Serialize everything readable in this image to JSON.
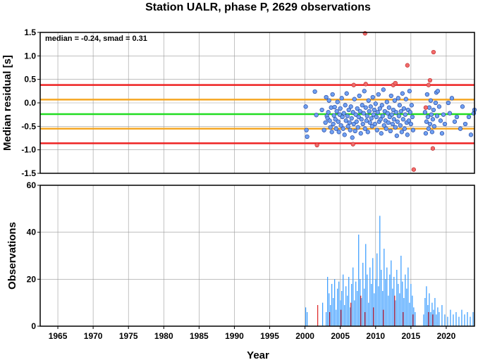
{
  "chart_data": [
    {
      "type": "scatter",
      "title": "Station UALR, phase P, 2629 observations",
      "ylabel": "Median residual [s]",
      "annotation": "median = -0.24, smad = 0.31",
      "xlim": [
        1962.5,
        2024.0
      ],
      "ylim": [
        -1.5,
        1.5
      ],
      "grid": true,
      "yticks": [
        "1.5",
        "1.0",
        "0.5",
        "0.0",
        "-0.5",
        "-1.0",
        "-1.5"
      ],
      "ytick_values": [
        1.5,
        1.0,
        0.5,
        0.0,
        -0.5,
        -1.0,
        -1.5
      ],
      "reference_lines": [
        {
          "y": 0.38,
          "color": "#ee2222"
        },
        {
          "y": 0.07,
          "color": "#f5a623"
        },
        {
          "y": -0.24,
          "color": "#22dd22"
        },
        {
          "y": -0.55,
          "color": "#f5a623"
        },
        {
          "y": -0.86,
          "color": "#ee2222"
        }
      ],
      "points_normal": [
        [
          2000.1,
          -0.08
        ],
        [
          2000.2,
          -0.58
        ],
        [
          2000.3,
          -0.72
        ],
        [
          2001.4,
          0.24
        ],
        [
          2001.6,
          -0.26
        ],
        [
          2002.4,
          -0.15
        ],
        [
          2002.7,
          -0.58
        ],
        [
          2002.9,
          -0.42
        ],
        [
          2003.0,
          0.12
        ],
        [
          2003.1,
          -0.28
        ],
        [
          2003.2,
          -0.33
        ],
        [
          2003.3,
          -0.2
        ],
        [
          2003.4,
          0.05
        ],
        [
          2003.5,
          -0.38
        ],
        [
          2003.6,
          -0.52
        ],
        [
          2003.7,
          -0.1
        ],
        [
          2003.8,
          -0.62
        ],
        [
          2003.9,
          0.18
        ],
        [
          2004.0,
          -0.45
        ],
        [
          2004.1,
          -0.27
        ],
        [
          2004.2,
          -0.09
        ],
        [
          2004.3,
          -0.35
        ],
        [
          2004.4,
          -0.55
        ],
        [
          2004.5,
          -0.18
        ],
        [
          2004.6,
          0.02
        ],
        [
          2004.7,
          -0.4
        ],
        [
          2004.8,
          -0.62
        ],
        [
          2004.9,
          -0.25
        ],
        [
          2005.0,
          -0.12
        ],
        [
          2005.1,
          -0.48
        ],
        [
          2005.2,
          0.1
        ],
        [
          2005.3,
          -0.3
        ],
        [
          2005.4,
          -0.55
        ],
        [
          2005.5,
          -0.22
        ],
        [
          2005.6,
          -0.68
        ],
        [
          2005.7,
          -0.05
        ],
        [
          2005.8,
          -0.38
        ],
        [
          2005.9,
          0.2
        ],
        [
          2006.0,
          -0.28
        ],
        [
          2006.1,
          -0.5
        ],
        [
          2006.2,
          -0.15
        ],
        [
          2006.3,
          -0.42
        ],
        [
          2006.4,
          -0.58
        ],
        [
          2006.5,
          -0.08
        ],
        [
          2006.6,
          -0.33
        ],
        [
          2006.7,
          -0.74
        ],
        [
          2006.8,
          -0.2
        ],
        [
          2006.9,
          -0.45
        ],
        [
          2007.0,
          0.08
        ],
        [
          2007.1,
          -0.6
        ],
        [
          2007.2,
          -0.25
        ],
        [
          2007.3,
          -0.4
        ],
        [
          2007.4,
          -0.12
        ],
        [
          2007.5,
          -0.52
        ],
        [
          2007.6,
          -0.3
        ],
        [
          2007.7,
          0.15
        ],
        [
          2007.8,
          -0.18
        ],
        [
          2007.9,
          -0.65
        ],
        [
          2008.0,
          -0.35
        ],
        [
          2008.1,
          -0.05
        ],
        [
          2008.2,
          -0.45
        ],
        [
          2008.3,
          -0.22
        ],
        [
          2008.4,
          0.25
        ],
        [
          2008.5,
          -0.55
        ],
        [
          2008.6,
          -0.1
        ],
        [
          2008.7,
          -0.38
        ],
        [
          2008.8,
          -0.28
        ],
        [
          2008.9,
          -0.62
        ],
        [
          2009.0,
          0.05
        ],
        [
          2009.1,
          -0.18
        ],
        [
          2009.2,
          -0.42
        ],
        [
          2009.3,
          -0.08
        ],
        [
          2009.4,
          -0.33
        ],
        [
          2009.5,
          -0.5
        ],
        [
          2009.6,
          0.12
        ],
        [
          2009.7,
          -0.25
        ],
        [
          2009.8,
          -0.15
        ],
        [
          2009.9,
          -0.45
        ],
        [
          2010.0,
          -0.02
        ],
        [
          2010.1,
          -0.3
        ],
        [
          2010.2,
          -0.58
        ],
        [
          2010.3,
          -0.2
        ],
        [
          2010.4,
          0.18
        ],
        [
          2010.5,
          -0.4
        ],
        [
          2010.6,
          -0.12
        ],
        [
          2010.7,
          -0.35
        ],
        [
          2010.8,
          -0.65
        ],
        [
          2010.9,
          -0.05
        ],
        [
          2011.0,
          -0.28
        ],
        [
          2011.1,
          0.28
        ],
        [
          2011.2,
          -0.48
        ],
        [
          2011.3,
          -0.18
        ],
        [
          2011.4,
          -0.38
        ],
        [
          2011.5,
          -0.55
        ],
        [
          2011.6,
          0.02
        ],
        [
          2011.7,
          -0.22
        ],
        [
          2011.8,
          -0.42
        ],
        [
          2011.9,
          -0.1
        ],
        [
          2012.0,
          -0.3
        ],
        [
          2012.1,
          -0.6
        ],
        [
          2012.2,
          0.15
        ],
        [
          2012.3,
          -0.25
        ],
        [
          2012.4,
          -0.45
        ],
        [
          2012.5,
          -0.15
        ],
        [
          2012.6,
          -0.35
        ],
        [
          2012.7,
          0.05
        ],
        [
          2012.8,
          -0.52
        ],
        [
          2012.9,
          -0.2
        ],
        [
          2013.0,
          -0.7
        ],
        [
          2013.1,
          -0.4
        ],
        [
          2013.2,
          0.1
        ],
        [
          2013.3,
          -0.28
        ],
        [
          2013.4,
          -0.05
        ],
        [
          2013.5,
          -0.48
        ],
        [
          2013.6,
          -0.18
        ],
        [
          2013.7,
          -0.62
        ],
        [
          2013.8,
          0.2
        ],
        [
          2013.9,
          -0.35
        ],
        [
          2014.0,
          -0.12
        ],
        [
          2014.1,
          -0.55
        ],
        [
          2014.2,
          -0.25
        ],
        [
          2014.3,
          0.08
        ],
        [
          2014.4,
          -0.42
        ],
        [
          2014.5,
          -0.68
        ],
        [
          2014.6,
          -0.15
        ],
        [
          2014.7,
          -0.38
        ],
        [
          2014.8,
          0.25
        ],
        [
          2014.9,
          -0.2
        ],
        [
          2015.0,
          -0.45
        ],
        [
          2015.1,
          -0.05
        ],
        [
          2015.2,
          -0.3
        ],
        [
          2015.3,
          -0.58
        ],
        [
          2017.0,
          -0.2
        ],
        [
          2017.1,
          -0.65
        ],
        [
          2017.2,
          -0.4
        ],
        [
          2017.3,
          0.18
        ],
        [
          2017.4,
          -0.3
        ],
        [
          2017.5,
          -0.55
        ],
        [
          2017.6,
          -0.1
        ],
        [
          2017.7,
          -0.45
        ],
        [
          2017.8,
          0.05
        ],
        [
          2017.9,
          -0.25
        ],
        [
          2018.0,
          -0.62
        ],
        [
          2018.1,
          -0.35
        ],
        [
          2018.2,
          -0.15
        ],
        [
          2018.3,
          -0.5
        ],
        [
          2018.5,
          0.0
        ],
        [
          2018.6,
          0.22
        ],
        [
          2018.7,
          -0.28
        ],
        [
          2018.8,
          0.25
        ],
        [
          2019.0,
          -0.08
        ],
        [
          2019.2,
          -0.38
        ],
        [
          2019.4,
          -0.65
        ],
        [
          2019.6,
          -0.25
        ],
        [
          2019.8,
          -0.45
        ],
        [
          2020.3,
          0.0
        ],
        [
          2020.5,
          -0.22
        ],
        [
          2020.8,
          0.1
        ],
        [
          2021.2,
          -0.4
        ],
        [
          2021.5,
          -0.3
        ],
        [
          2022.0,
          -0.55
        ],
        [
          2022.3,
          -0.08
        ],
        [
          2022.7,
          -0.45
        ],
        [
          2023.2,
          -0.3
        ],
        [
          2023.5,
          -0.68
        ],
        [
          2023.9,
          -0.22
        ],
        [
          2024.0,
          -0.15
        ]
      ],
      "points_outlier": [
        [
          2001.7,
          -0.9
        ],
        [
          2006.8,
          -0.88
        ],
        [
          2006.9,
          0.38
        ],
        [
          2008.5,
          1.48
        ],
        [
          2008.6,
          0.4
        ],
        [
          2012.5,
          0.38
        ],
        [
          2012.8,
          0.42
        ],
        [
          2014.5,
          0.8
        ],
        [
          2015.4,
          -1.42
        ],
        [
          2017.1,
          -0.1
        ],
        [
          2017.5,
          0.38
        ],
        [
          2017.7,
          0.48
        ],
        [
          2018.1,
          -0.97
        ],
        [
          2018.2,
          1.08
        ]
      ],
      "colors": {
        "normal_fill": "#6fa0f2",
        "normal_stroke": "#2a4aa0",
        "outlier_fill": "#f26b6b",
        "outlier_stroke": "#c03030"
      }
    },
    {
      "type": "bar",
      "xlabel": "Year",
      "ylabel": "Observations",
      "xlim": [
        1962.5,
        2024.0
      ],
      "ylim": [
        0,
        60
      ],
      "grid": true,
      "xticks": [
        "1965",
        "1970",
        "1975",
        "1980",
        "1985",
        "1990",
        "1995",
        "2000",
        "2005",
        "2010",
        "2015",
        "2020"
      ],
      "xtick_values": [
        1965,
        1970,
        1975,
        1980,
        1985,
        1990,
        1995,
        2000,
        2005,
        2010,
        2015,
        2020
      ],
      "yticks": [
        "60",
        "40",
        "20",
        "0"
      ],
      "ytick_values": [
        60,
        40,
        20,
        0
      ],
      "bars_blue": [
        [
          2000.1,
          8
        ],
        [
          2000.3,
          6
        ],
        [
          2002.5,
          10
        ],
        [
          2003.0,
          6
        ],
        [
          2003.2,
          21
        ],
        [
          2003.4,
          14
        ],
        [
          2003.6,
          9
        ],
        [
          2003.8,
          18
        ],
        [
          2004.0,
          12
        ],
        [
          2004.2,
          20
        ],
        [
          2004.4,
          7
        ],
        [
          2004.6,
          16
        ],
        [
          2004.8,
          19
        ],
        [
          2005.0,
          11
        ],
        [
          2005.2,
          15
        ],
        [
          2005.4,
          22
        ],
        [
          2005.6,
          9
        ],
        [
          2005.8,
          17
        ],
        [
          2006.0,
          13
        ],
        [
          2006.2,
          21
        ],
        [
          2006.4,
          8
        ],
        [
          2006.6,
          18
        ],
        [
          2006.8,
          25
        ],
        [
          2007.0,
          11
        ],
        [
          2007.2,
          19
        ],
        [
          2007.4,
          15
        ],
        [
          2007.6,
          39
        ],
        [
          2007.8,
          20
        ],
        [
          2008.0,
          12
        ],
        [
          2008.2,
          27
        ],
        [
          2008.4,
          16
        ],
        [
          2008.6,
          35
        ],
        [
          2008.8,
          22
        ],
        [
          2009.0,
          10
        ],
        [
          2009.2,
          25
        ],
        [
          2009.4,
          18
        ],
        [
          2009.6,
          29
        ],
        [
          2009.8,
          14
        ],
        [
          2010.0,
          20
        ],
        [
          2010.2,
          31
        ],
        [
          2010.4,
          17
        ],
        [
          2010.6,
          47
        ],
        [
          2010.8,
          24
        ],
        [
          2011.0,
          15
        ],
        [
          2011.2,
          33
        ],
        [
          2011.4,
          20
        ],
        [
          2011.6,
          25
        ],
        [
          2011.8,
          13
        ],
        [
          2012.0,
          22
        ],
        [
          2012.2,
          28
        ],
        [
          2012.4,
          16
        ],
        [
          2012.6,
          21
        ],
        [
          2012.8,
          11
        ],
        [
          2013.0,
          24
        ],
        [
          2013.2,
          18
        ],
        [
          2013.4,
          14
        ],
        [
          2013.6,
          30
        ],
        [
          2013.8,
          19
        ],
        [
          2014.0,
          12
        ],
        [
          2014.2,
          22
        ],
        [
          2014.4,
          16
        ],
        [
          2014.6,
          25
        ],
        [
          2014.8,
          10
        ],
        [
          2015.0,
          18
        ],
        [
          2015.2,
          13
        ],
        [
          2015.4,
          8
        ],
        [
          2015.6,
          6
        ],
        [
          2016.8,
          5
        ],
        [
          2017.0,
          12
        ],
        [
          2017.2,
          17
        ],
        [
          2017.4,
          9
        ],
        [
          2017.6,
          14
        ],
        [
          2017.8,
          6
        ],
        [
          2018.0,
          10
        ],
        [
          2018.2,
          7
        ],
        [
          2018.4,
          12
        ],
        [
          2018.6,
          5
        ],
        [
          2018.8,
          8
        ],
        [
          2019.0,
          6
        ],
        [
          2019.4,
          9
        ],
        [
          2019.8,
          5
        ],
        [
          2020.2,
          4
        ],
        [
          2020.6,
          7
        ],
        [
          2021.0,
          5
        ],
        [
          2021.4,
          6
        ],
        [
          2021.8,
          4
        ],
        [
          2022.2,
          7
        ],
        [
          2022.6,
          5
        ],
        [
          2023.0,
          6
        ],
        [
          2023.4,
          4
        ],
        [
          2023.8,
          6
        ]
      ],
      "bars_red": [
        [
          2001.8,
          9
        ],
        [
          2003.5,
          6
        ],
        [
          2005.1,
          7
        ],
        [
          2006.5,
          10
        ],
        [
          2007.9,
          13
        ],
        [
          2008.5,
          6
        ],
        [
          2009.7,
          8
        ],
        [
          2011.1,
          7
        ],
        [
          2012.7,
          13
        ],
        [
          2013.9,
          6
        ],
        [
          2015.3,
          5
        ],
        [
          2017.5,
          6
        ],
        [
          2018.1,
          5
        ]
      ],
      "colors": {
        "blue": "#3399ff",
        "red": "#dd2222"
      }
    }
  ]
}
